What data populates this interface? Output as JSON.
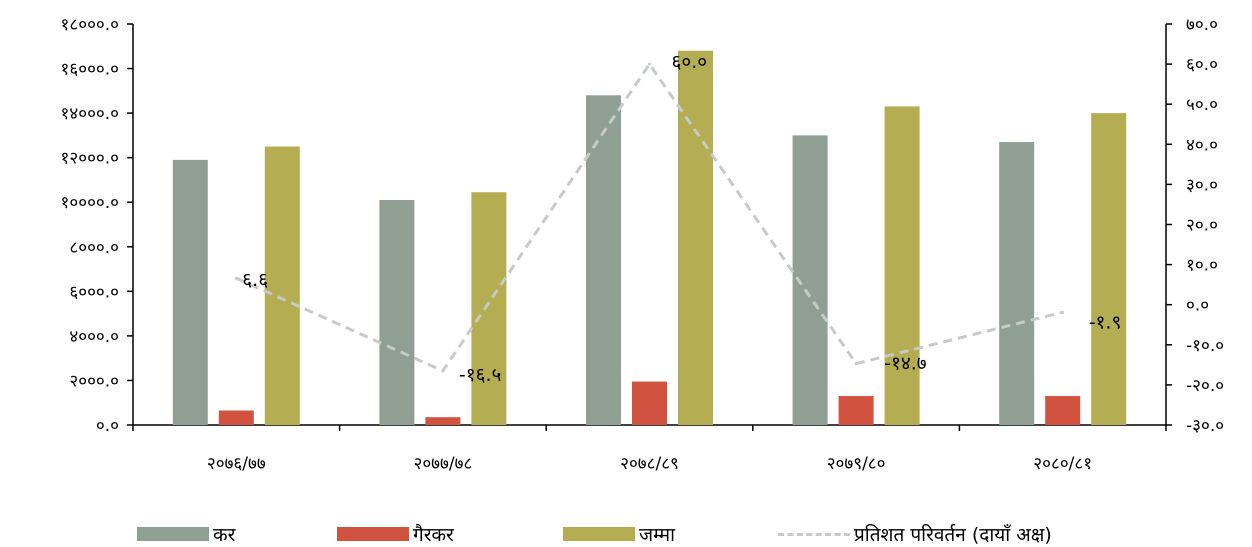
{
  "chart_data": {
    "type": "bar",
    "categories": [
      "२०७६/७७",
      "२०७७/७८",
      "२०७८/८९",
      "२०७९/८०",
      "२०८०/८१"
    ],
    "series": [
      {
        "name": "कर",
        "color": "#8f9f94",
        "values": [
          11900,
          10100,
          14800,
          13000,
          12700
        ]
      },
      {
        "name": "गैरकर",
        "color": "#d0523f",
        "values": [
          650,
          350,
          1950,
          1300,
          1300
        ]
      },
      {
        "name": "जम्मा",
        "color": "#b5ad52",
        "values": [
          12500,
          10450,
          16800,
          14300,
          14000
        ]
      }
    ],
    "line": {
      "name": "प्रतिशत परिवर्तन (दायाँ अक्ष)",
      "color": "#c7cbc7",
      "values": [
        6.6,
        -16.5,
        60.0,
        -14.7,
        -1.9
      ]
    },
    "data_labels": [
      "६.६",
      "-१६.५",
      "६०.०",
      "-१४.७",
      "-१.९"
    ],
    "y_left": {
      "min": 0,
      "max": 18000,
      "ticks": [
        0,
        2000,
        4000,
        6000,
        8000,
        10000,
        12000,
        14000,
        16000,
        18000
      ],
      "tick_labels": [
        "०.०",
        "२०००.०",
        "४०००.०",
        "६०००.०",
        "८०००.०",
        "१००००.०",
        "१२०००.०",
        "१४०००.०",
        "१६०००.०",
        "१८०००.०"
      ]
    },
    "y_right": {
      "min": -30,
      "max": 70,
      "ticks": [
        -30,
        -20,
        -10,
        0,
        10,
        20,
        30,
        40,
        50,
        60,
        70
      ],
      "tick_labels": [
        "-३०.०",
        "-२०.०",
        "-१०.०",
        "०.०",
        "१०.०",
        "२०.०",
        "३०.०",
        "४०.०",
        "५०.०",
        "६०.०",
        "७०.०"
      ]
    },
    "grid": false,
    "legend_position": "bottom"
  },
  "legend": {
    "kar": "कर",
    "gairkar": "गैरकर",
    "jamma": "जम्मा",
    "line": "प्रतिशत परिवर्तन (दायाँ अक्ष)"
  }
}
